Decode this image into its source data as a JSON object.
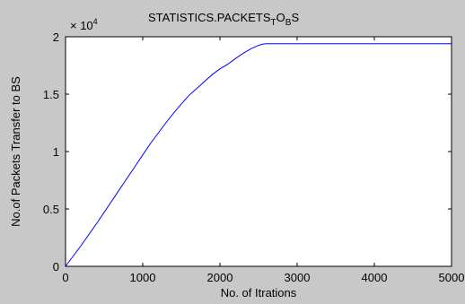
{
  "figure": {
    "background": "#c8c8c8",
    "axes_background": "#ffffff",
    "line_color": "#0000ff"
  },
  "chart_data": {
    "type": "line",
    "title_main": "STATISTICS.PACKETS",
    "title_sub1": "T",
    "title_mid": "O",
    "title_sub2": "B",
    "title_end": "S",
    "xlabel": "No. of Itrations",
    "ylabel": "No.of Packets Transfer to BS",
    "y_exponent_prefix": "× 10",
    "y_exponent_power": "4",
    "xlim": [
      0,
      5000
    ],
    "ylim": [
      0,
      20000
    ],
    "xticks": [
      0,
      1000,
      2000,
      3000,
      4000,
      5000
    ],
    "xtick_labels": [
      "0",
      "1000",
      "2000",
      "3000",
      "4000",
      "5000"
    ],
    "yticks": [
      0,
      5000,
      10000,
      15000,
      20000
    ],
    "ytick_labels": [
      "0",
      "0.5",
      "1",
      "1.5",
      "2"
    ],
    "grid": false,
    "series": [
      {
        "x": [
          0,
          100,
          200,
          300,
          400,
          500,
          600,
          700,
          800,
          900,
          1000,
          1100,
          1200,
          1300,
          1400,
          1500,
          1600,
          1700,
          1800,
          1900,
          2000,
          2100,
          2200,
          2300,
          2400,
          2500,
          2550,
          2600,
          2700,
          2800,
          3000,
          3500,
          4000,
          4500,
          5000
        ],
        "y": [
          0,
          900,
          1800,
          2750,
          3700,
          4700,
          5700,
          6700,
          7700,
          8700,
          9700,
          10700,
          11600,
          12500,
          13350,
          14150,
          14900,
          15500,
          16100,
          16700,
          17200,
          17600,
          18100,
          18550,
          18950,
          19250,
          19350,
          19400,
          19400,
          19400,
          19400,
          19400,
          19400,
          19400,
          19400
        ]
      }
    ]
  }
}
